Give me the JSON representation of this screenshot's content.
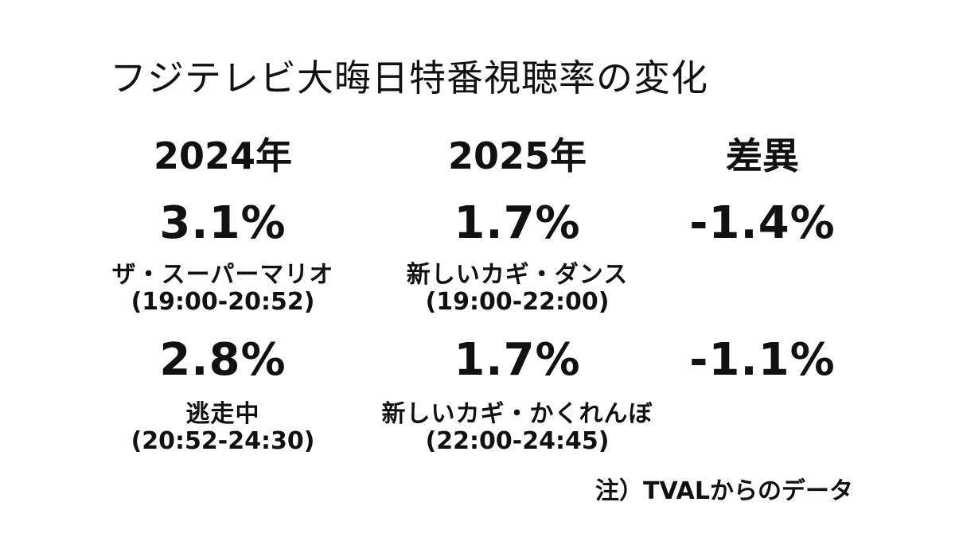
{
  "title": "フジテレビ大晦日特番視聴率の変化",
  "columns": {
    "y2024": {
      "header": "2024年",
      "rows": [
        {
          "rate": "3.1%",
          "program": "ザ・スーパーマリオ",
          "time": "(19:00-20:52)"
        },
        {
          "rate": "2.8%",
          "program": "逃走中",
          "time": "(20:52-24:30)"
        }
      ]
    },
    "y2025": {
      "header": "2025年",
      "rows": [
        {
          "rate": "1.7%",
          "program": "新しいカギ・ダンス",
          "time": "(19:00-22:00)"
        },
        {
          "rate": "1.7%",
          "program": "新しいカギ・かくれんぼ",
          "time": "(22:00-24:45)"
        }
      ]
    },
    "diff": {
      "header": "差異",
      "rows": [
        {
          "rate": "-1.4%"
        },
        {
          "rate": "-1.1%"
        }
      ]
    }
  },
  "note": "注）TVALからのデータ"
}
